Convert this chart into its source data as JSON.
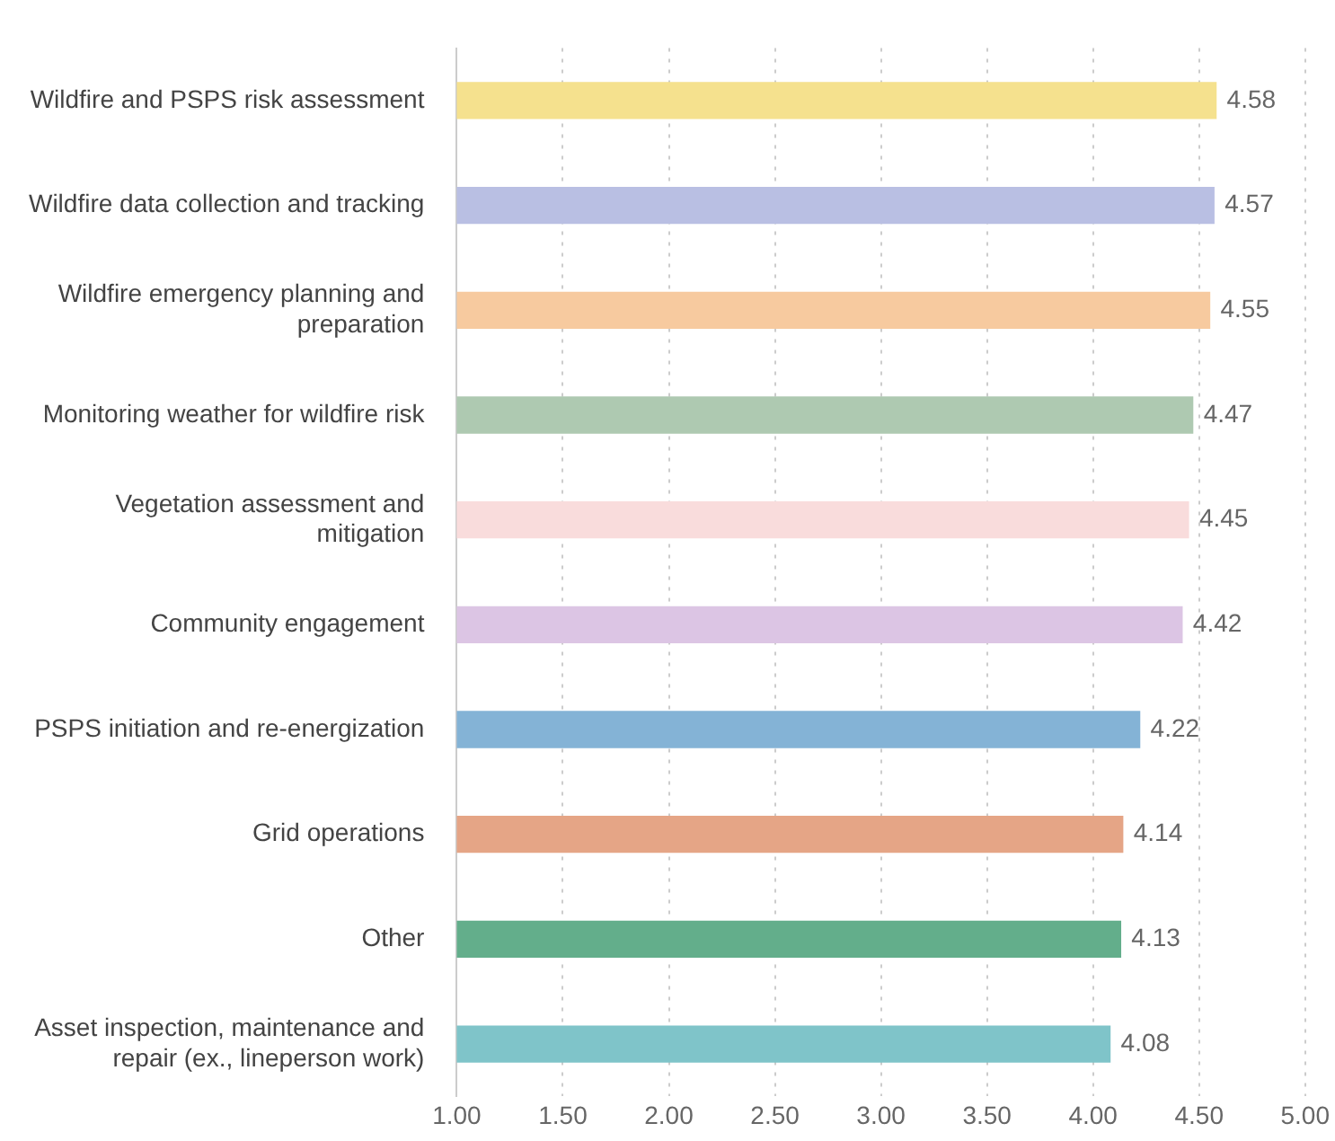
{
  "chart_data": {
    "type": "bar",
    "orientation": "horizontal",
    "categories": [
      "Wildfire and PSPS risk assessment",
      "Wildfire data collection and tracking",
      "Wildfire emergency planning and\npreparation",
      "Monitoring weather for wildfire risk",
      "Vegetation assessment and\nmitigation",
      "Community engagement",
      "PSPS initiation and re-energization",
      "Grid operations",
      "Other",
      "Asset inspection, maintenance and\nrepair (ex., lineperson work)"
    ],
    "values": [
      4.58,
      4.57,
      4.55,
      4.47,
      4.45,
      4.42,
      4.22,
      4.14,
      4.13,
      4.08
    ],
    "colors": [
      "#f5e18e",
      "#b9bfe3",
      "#f7ca9f",
      "#aec9b1",
      "#f9dcdc",
      "#dcc5e4",
      "#84b3d6",
      "#e5a586",
      "#63ae8b",
      "#7fc4c9"
    ],
    "xlim": [
      1,
      5
    ],
    "xticks": [
      {
        "value": 1,
        "label": "1.00"
      },
      {
        "value": 1.5,
        "label": "1.50"
      },
      {
        "value": 2,
        "label": "2.00"
      },
      {
        "value": 2.5,
        "label": "2.50"
      },
      {
        "value": 3,
        "label": "3.00"
      },
      {
        "value": 3.5,
        "label": "3.50"
      },
      {
        "value": 4,
        "label": "4.00"
      },
      {
        "value": 4.5,
        "label": "4.50"
      },
      {
        "value": 5,
        "label": "5.00"
      }
    ],
    "grid": "x",
    "data_labels": true,
    "legend": false
  }
}
